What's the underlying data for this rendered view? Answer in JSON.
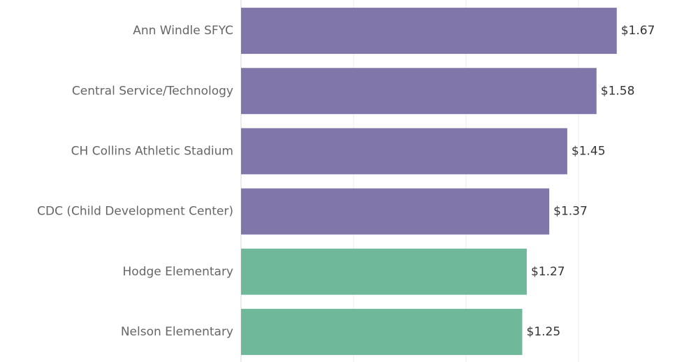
{
  "chart_data": {
    "type": "barh",
    "categories": [
      "Ann Windle  SFYC",
      "Central Service/Technology",
      "CH Collins Athletic Stadium",
      "CDC (Child Development Center)",
      "Hodge Elementary",
      "Nelson Elementary"
    ],
    "values": [
      1.67,
      1.58,
      1.45,
      1.37,
      1.27,
      1.25
    ],
    "value_labels": [
      "$1.67",
      "$1.58",
      "$1.45",
      "$1.37",
      "$1.27",
      "$1.25"
    ],
    "colors": [
      "#8176aa",
      "#8176aa",
      "#8176aa",
      "#8176aa",
      "#6fb899",
      "#6fb899"
    ],
    "xlim": [
      0,
      2
    ],
    "xticks": [
      0,
      0.5,
      1,
      1.5
    ],
    "grid": true
  }
}
